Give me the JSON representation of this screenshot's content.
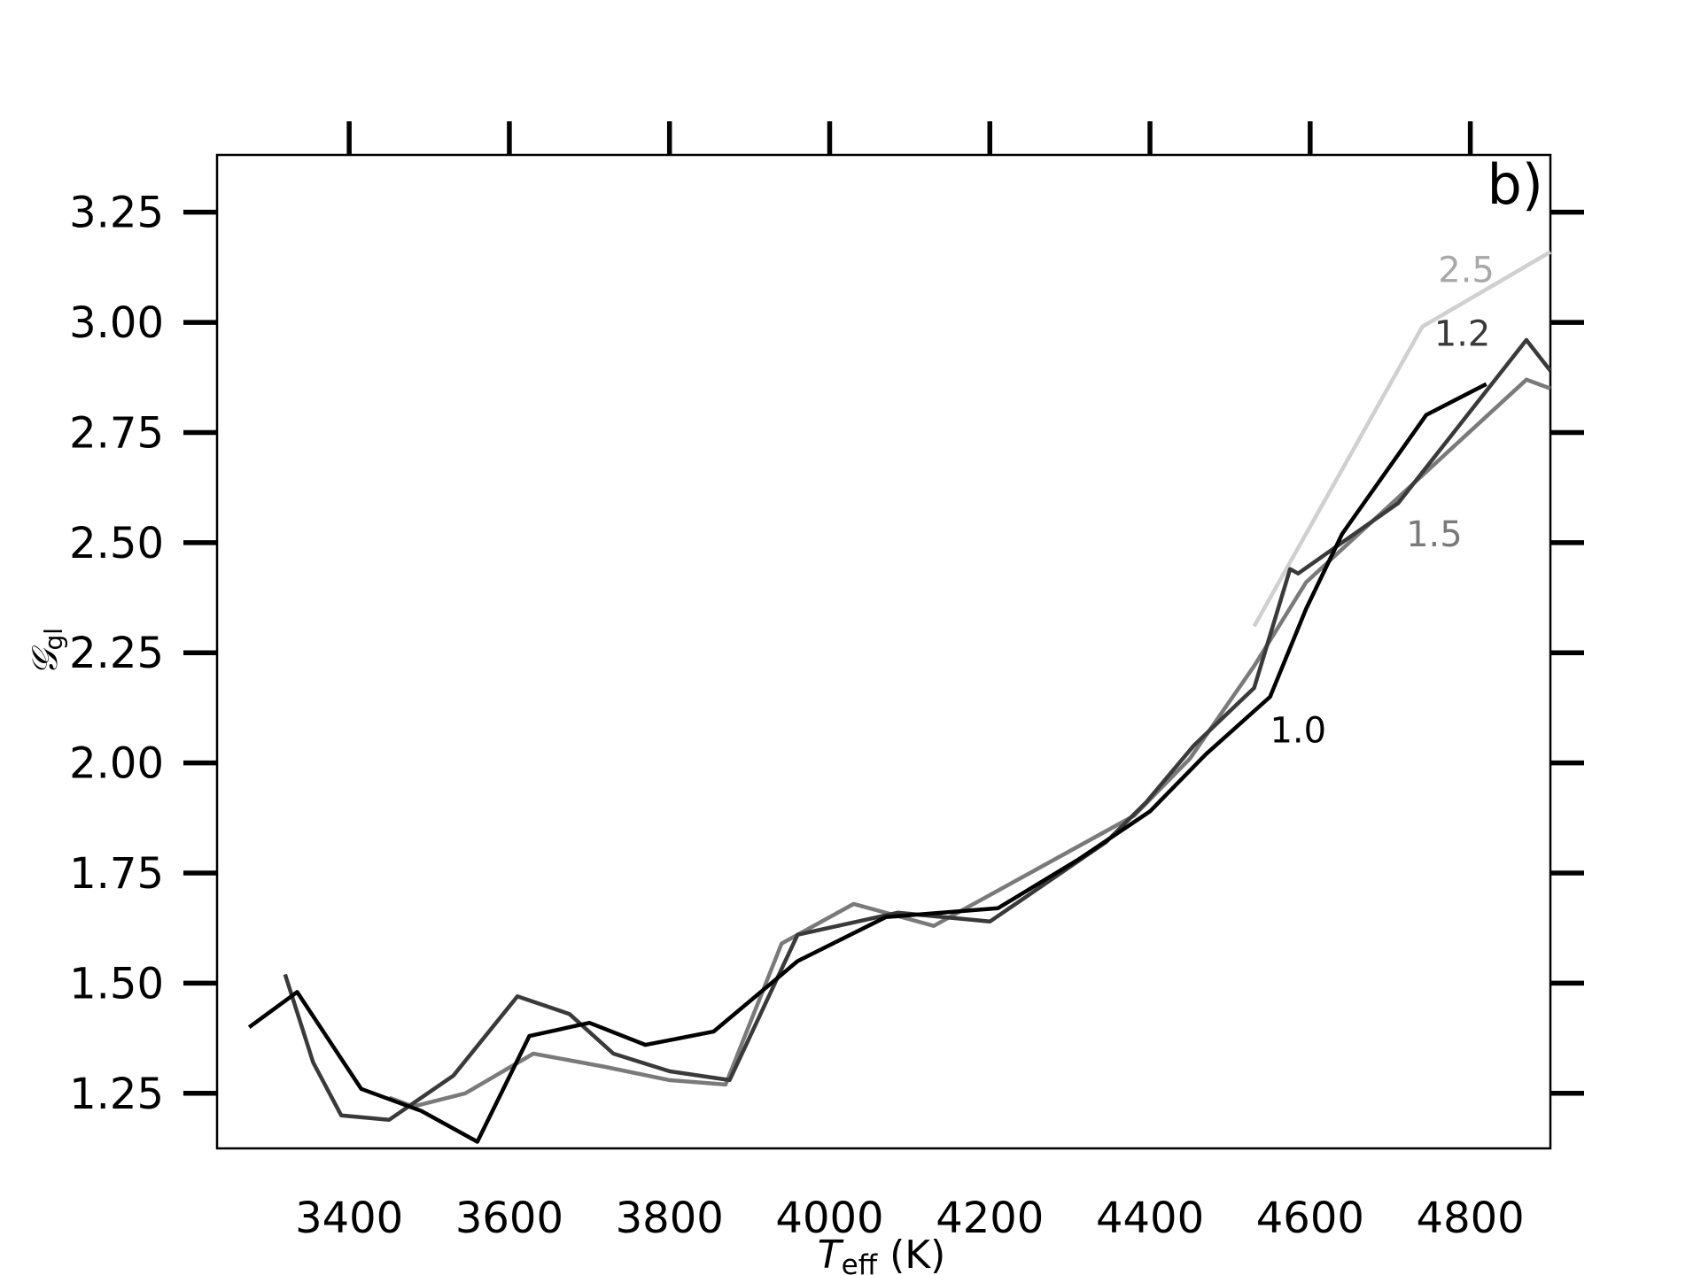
{
  "chart_data": {
    "type": "line",
    "panel_label": "b)",
    "xlabel": {
      "main": "T",
      "sub": "eff",
      "suffix": " (K)"
    },
    "ylabel": {
      "main": "𝒢",
      "sub": "gl"
    },
    "xlim": [
      3235,
      4900
    ],
    "ylim": [
      1.125,
      3.38
    ],
    "xticks": [
      3400,
      3600,
      3800,
      4000,
      4200,
      4400,
      4600,
      4800
    ],
    "xtick_labels": [
      "3400",
      "3600",
      "3800",
      "4000",
      "4200",
      "4400",
      "4600",
      "4800"
    ],
    "yticks": [
      1.25,
      1.5,
      1.75,
      2.0,
      2.25,
      2.5,
      2.75,
      3.0,
      3.25
    ],
    "ytick_labels": [
      "1.25",
      "1.50",
      "1.75",
      "2.00",
      "2.25",
      "2.50",
      "2.75",
      "3.00",
      "3.25"
    ],
    "grid": false,
    "legend": "none",
    "series": [
      {
        "name": "1.0",
        "color": "#000000",
        "x": [
          3275,
          3335,
          3415,
          3490,
          3560,
          3625,
          3700,
          3770,
          3855,
          3960,
          4070,
          4210,
          4310,
          4400,
          4470,
          4550,
          4595,
          4640,
          4745,
          4820
        ],
        "y": [
          1.4,
          1.48,
          1.26,
          1.21,
          1.14,
          1.38,
          1.41,
          1.36,
          1.39,
          1.55,
          1.65,
          1.67,
          1.78,
          1.89,
          2.02,
          2.15,
          2.35,
          2.52,
          2.79,
          2.86
        ],
        "label_pos": [
          4585,
          2.075
        ]
      },
      {
        "name": "1.2",
        "color": "#3a3a3a",
        "x": [
          3320,
          3355,
          3390,
          3450,
          3530,
          3610,
          3675,
          3730,
          3800,
          3875,
          3960,
          4085,
          4200,
          4345,
          4395,
          4455,
          4530,
          4575,
          4585,
          4710,
          4870,
          4900
        ],
        "y": [
          1.52,
          1.32,
          1.2,
          1.19,
          1.29,
          1.47,
          1.43,
          1.34,
          1.3,
          1.28,
          1.61,
          1.66,
          1.64,
          1.82,
          1.91,
          2.04,
          2.17,
          2.44,
          2.43,
          2.59,
          2.96,
          2.89
        ],
        "label_pos": [
          4790,
          2.975
        ]
      },
      {
        "name": "1.5",
        "color": "#7a7a7a",
        "x": [
          3450,
          3480,
          3545,
          3630,
          3720,
          3800,
          3870,
          3940,
          4030,
          4130,
          4240,
          4380,
          4450,
          4530,
          4595,
          4870,
          4900
        ],
        "y": [
          1.24,
          1.22,
          1.25,
          1.34,
          1.31,
          1.28,
          1.27,
          1.59,
          1.68,
          1.63,
          1.74,
          1.88,
          2.01,
          2.22,
          2.41,
          2.87,
          2.85
        ],
        "label_pos": [
          4755,
          2.52
        ]
      },
      {
        "name": "2.5",
        "color": "#d0d0d0",
        "x": [
          4530,
          4740,
          4900
        ],
        "y": [
          2.31,
          2.99,
          3.16
        ],
        "label_pos": [
          4795,
          3.12
        ]
      }
    ]
  }
}
